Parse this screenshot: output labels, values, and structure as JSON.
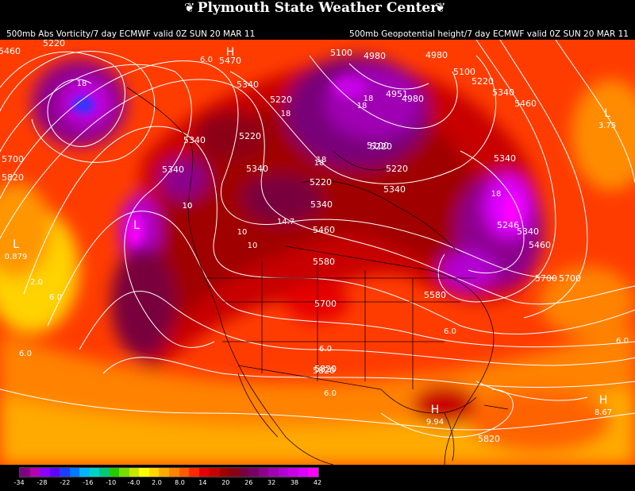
{
  "header": {
    "title": "Plymouth State Weather Center",
    "left_description": "500mb Abs Vorticity/7 day ECMWF valid 0Z SUN 20 MAR 11",
    "right_description": "500mb Geopotential height/7 day ECMWF valid 0Z SUN 20 MAR 11"
  },
  "map": {
    "height_labels": [
      "5460",
      "5220",
      "5470",
      "5340",
      "5220",
      "5100",
      "4980",
      "4980",
      "4951",
      "4980",
      "5100",
      "5220",
      "5340",
      "5460",
      "5220",
      "5340",
      "5340",
      "5340",
      "5220",
      "5220",
      "5100",
      "5220",
      "5340",
      "5340",
      "5460",
      "5580",
      "5700",
      "5820",
      "5700",
      "5820",
      "5340",
      "5246",
      "5340",
      "5460",
      "5700",
      "5580",
      "5700",
      "5820",
      "5820",
      "5820"
    ],
    "vorticity_labels": [
      "18",
      "6.0",
      "10",
      "10",
      "18",
      "18",
      "18",
      "10",
      "14.7",
      "10",
      "18",
      "2.0",
      "6.0",
      "6.0",
      "6.0",
      "6.0",
      "6.0",
      "18",
      "18",
      "6.0"
    ],
    "lows": [
      {
        "symbol": "L",
        "value": "0.879"
      },
      {
        "symbol": "L",
        "value": "3.75"
      },
      {
        "symbol": "L",
        "value": ""
      }
    ],
    "highs": [
      {
        "symbol": "H",
        "value": "8.67"
      },
      {
        "symbol": "H",
        "value": "9.94"
      },
      {
        "symbol": "H",
        "value": ""
      }
    ]
  },
  "legend": {
    "ticks": [
      "-34",
      "-28",
      "-22",
      "-16",
      "-10",
      "-4.0",
      "2.0",
      "8.0",
      "14",
      "20",
      "26",
      "32",
      "38",
      "42"
    ],
    "colors": [
      "#7f007f",
      "#b400b4",
      "#8c00ff",
      "#6000ff",
      "#1e3cff",
      "#0078ff",
      "#00b4ff",
      "#00d2c8",
      "#00c878",
      "#28c800",
      "#78dc00",
      "#c8e600",
      "#ffff00",
      "#ffd700",
      "#ffaa00",
      "#ff8200",
      "#ff5a00",
      "#ff2800",
      "#e60000",
      "#c80000",
      "#a00000",
      "#8c0014",
      "#78003c",
      "#780064",
      "#8c008c",
      "#a000b4",
      "#b400d2",
      "#c800e6",
      "#dc00ff",
      "#ff00ff"
    ]
  }
}
